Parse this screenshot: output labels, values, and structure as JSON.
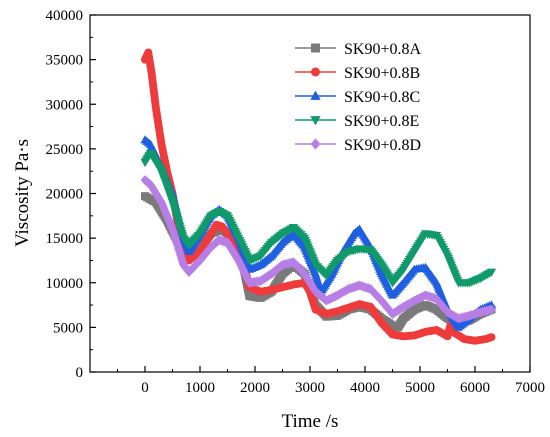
{
  "chart_data": {
    "type": "scatter",
    "xlabel": "Time /s",
    "ylabel": "Viscosity Pa·s",
    "xlim": [
      -1000,
      7000
    ],
    "ylim": [
      0,
      40000
    ],
    "xticks": [
      0,
      1000,
      2000,
      3000,
      4000,
      5000,
      6000,
      7000
    ],
    "yticks": [
      0,
      5000,
      10000,
      15000,
      20000,
      25000,
      30000,
      35000,
      40000
    ],
    "grid": false,
    "legend_position": "top-right",
    "series": [
      {
        "name": "SK90+0.8A",
        "color": "#7a7a7a",
        "marker": "square",
        "points": [
          [
            0,
            19700
          ],
          [
            200,
            19000
          ],
          [
            400,
            17000
          ],
          [
            600,
            14500
          ],
          [
            800,
            13200
          ],
          [
            1000,
            14000
          ],
          [
            1200,
            15500
          ],
          [
            1400,
            16000
          ],
          [
            1600,
            15000
          ],
          [
            1800,
            11500
          ],
          [
            1900,
            8500
          ],
          [
            2100,
            8300
          ],
          [
            2300,
            9000
          ],
          [
            2500,
            11000
          ],
          [
            2700,
            12000
          ],
          [
            2900,
            11000
          ],
          [
            3100,
            7500
          ],
          [
            3300,
            6200
          ],
          [
            3500,
            6300
          ],
          [
            3700,
            7000
          ],
          [
            3900,
            7300
          ],
          [
            4100,
            7000
          ],
          [
            4300,
            6000
          ],
          [
            4500,
            5200
          ],
          [
            4600,
            5000
          ],
          [
            4700,
            6000
          ],
          [
            4900,
            7000
          ],
          [
            5100,
            7500
          ],
          [
            5300,
            7000
          ],
          [
            5500,
            6000
          ],
          [
            5700,
            5500
          ],
          [
            5900,
            5800
          ],
          [
            6100,
            6500
          ],
          [
            6300,
            7000
          ]
        ]
      },
      {
        "name": "SK90+0.8B",
        "color": "#ee3b3b",
        "marker": "circle",
        "points": [
          [
            0,
            35000
          ],
          [
            60,
            35800
          ],
          [
            120,
            33500
          ],
          [
            200,
            29500
          ],
          [
            300,
            25500
          ],
          [
            400,
            22500
          ],
          [
            500,
            20000
          ],
          [
            600,
            16500
          ],
          [
            700,
            13500
          ],
          [
            800,
            12500
          ],
          [
            1000,
            13500
          ],
          [
            1200,
            15500
          ],
          [
            1300,
            16500
          ],
          [
            1400,
            16300
          ],
          [
            1600,
            14500
          ],
          [
            1800,
            12000
          ],
          [
            1900,
            9500
          ],
          [
            2100,
            9000
          ],
          [
            2300,
            9200
          ],
          [
            2500,
            9500
          ],
          [
            2700,
            9800
          ],
          [
            2900,
            10000
          ],
          [
            3000,
            9000
          ],
          [
            3100,
            7000
          ],
          [
            3300,
            6500
          ],
          [
            3500,
            6800
          ],
          [
            3700,
            7200
          ],
          [
            3900,
            7600
          ],
          [
            4100,
            7300
          ],
          [
            4300,
            5500
          ],
          [
            4500,
            4200
          ],
          [
            4700,
            4000
          ],
          [
            4900,
            4100
          ],
          [
            5100,
            4500
          ],
          [
            5300,
            4700
          ],
          [
            5500,
            4000
          ],
          [
            5550,
            5200
          ],
          [
            5600,
            4500
          ],
          [
            5800,
            3700
          ],
          [
            6000,
            3500
          ],
          [
            6200,
            3700
          ],
          [
            6300,
            3900
          ]
        ]
      },
      {
        "name": "SK90+0.8C",
        "color": "#1f5fe0",
        "marker": "triangle-up",
        "points": [
          [
            0,
            26000
          ],
          [
            100,
            25500
          ],
          [
            300,
            23000
          ],
          [
            500,
            20000
          ],
          [
            700,
            15000
          ],
          [
            800,
            13500
          ],
          [
            1000,
            15500
          ],
          [
            1200,
            17500
          ],
          [
            1350,
            18200
          ],
          [
            1500,
            17500
          ],
          [
            1700,
            15000
          ],
          [
            1900,
            11500
          ],
          [
            2100,
            12000
          ],
          [
            2300,
            13000
          ],
          [
            2500,
            14500
          ],
          [
            2700,
            15500
          ],
          [
            2900,
            14000
          ],
          [
            3100,
            11000
          ],
          [
            3200,
            9000
          ],
          [
            3400,
            11000
          ],
          [
            3600,
            13500
          ],
          [
            3800,
            15500
          ],
          [
            3900,
            16000
          ],
          [
            4100,
            14000
          ],
          [
            4300,
            11000
          ],
          [
            4500,
            8600
          ],
          [
            4700,
            10000
          ],
          [
            4900,
            11500
          ],
          [
            5100,
            11700
          ],
          [
            5300,
            10000
          ],
          [
            5500,
            7000
          ],
          [
            5700,
            5000
          ],
          [
            5900,
            6000
          ],
          [
            6100,
            7000
          ],
          [
            6300,
            7500
          ]
        ]
      },
      {
        "name": "SK90+0.8E",
        "color": "#109a6a",
        "marker": "triangle-down",
        "points": [
          [
            0,
            23500
          ],
          [
            100,
            24500
          ],
          [
            300,
            22500
          ],
          [
            500,
            19000
          ],
          [
            700,
            15000
          ],
          [
            800,
            14200
          ],
          [
            1000,
            15500
          ],
          [
            1200,
            17500
          ],
          [
            1350,
            18000
          ],
          [
            1500,
            17500
          ],
          [
            1700,
            15000
          ],
          [
            1900,
            12500
          ],
          [
            2100,
            13000
          ],
          [
            2300,
            14500
          ],
          [
            2500,
            15500
          ],
          [
            2700,
            16200
          ],
          [
            2900,
            15000
          ],
          [
            3100,
            12000
          ],
          [
            3300,
            10800
          ],
          [
            3500,
            12500
          ],
          [
            3700,
            13500
          ],
          [
            3900,
            13800
          ],
          [
            4100,
            13700
          ],
          [
            4300,
            12000
          ],
          [
            4500,
            10000
          ],
          [
            4700,
            11500
          ],
          [
            4900,
            13500
          ],
          [
            5100,
            15500
          ],
          [
            5300,
            15300
          ],
          [
            5500,
            13000
          ],
          [
            5700,
            10000
          ],
          [
            5900,
            10000
          ],
          [
            6100,
            10500
          ],
          [
            6300,
            11200
          ]
        ]
      },
      {
        "name": "SK90+0.8D",
        "color": "#b77fe6",
        "marker": "diamond",
        "points": [
          [
            0,
            21500
          ],
          [
            100,
            21000
          ],
          [
            300,
            19000
          ],
          [
            500,
            16000
          ],
          [
            700,
            12000
          ],
          [
            800,
            11200
          ],
          [
            1000,
            12500
          ],
          [
            1200,
            14000
          ],
          [
            1350,
            14800
          ],
          [
            1500,
            14500
          ],
          [
            1700,
            12500
          ],
          [
            1900,
            10000
          ],
          [
            2100,
            10200
          ],
          [
            2300,
            11000
          ],
          [
            2500,
            12000
          ],
          [
            2700,
            12300
          ],
          [
            2900,
            11000
          ],
          [
            3100,
            9000
          ],
          [
            3300,
            8000
          ],
          [
            3500,
            8600
          ],
          [
            3700,
            9300
          ],
          [
            3900,
            9700
          ],
          [
            4100,
            9300
          ],
          [
            4300,
            8000
          ],
          [
            4500,
            6500
          ],
          [
            4700,
            7300
          ],
          [
            4900,
            8000
          ],
          [
            5100,
            8600
          ],
          [
            5300,
            8200
          ],
          [
            5500,
            6700
          ],
          [
            5700,
            6000
          ],
          [
            5900,
            6300
          ],
          [
            6100,
            6700
          ],
          [
            6300,
            7000
          ]
        ]
      }
    ]
  }
}
